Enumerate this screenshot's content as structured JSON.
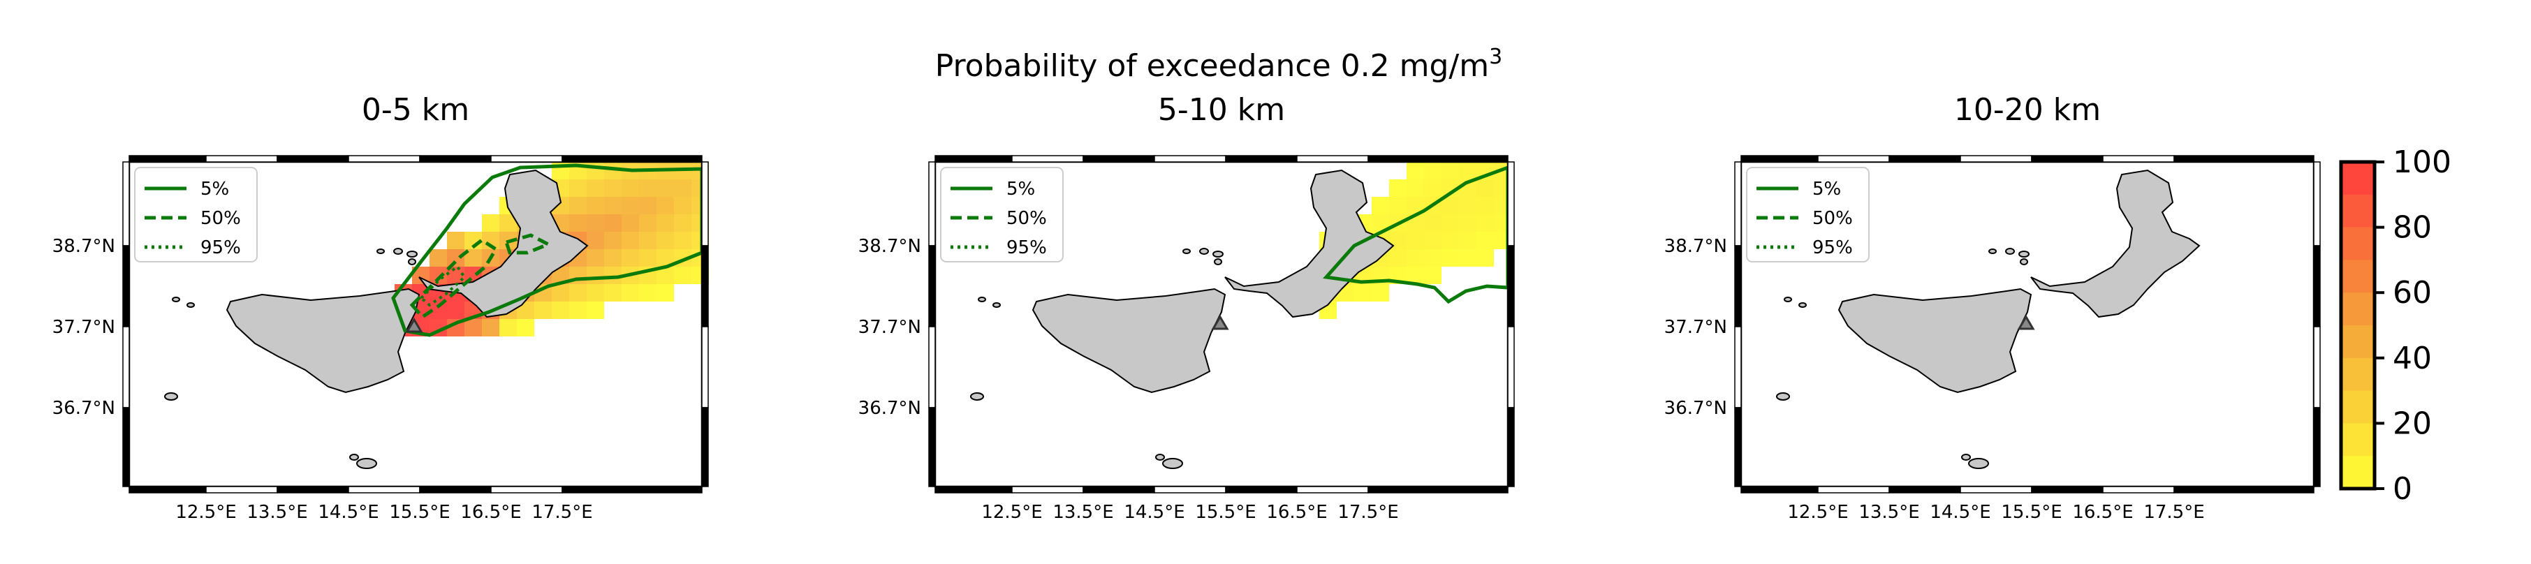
{
  "figure": {
    "suptitle_line1": "Probability of exceedance 0.2 mg/m",
    "suptitle_superscript": "3"
  },
  "axes": {
    "lat_ticks": [
      "38.7°N",
      "37.7°N",
      "36.7°N"
    ],
    "lon_ticks": [
      "12.5°E",
      "13.5°E",
      "14.5°E",
      "15.5°E",
      "16.5°E",
      "17.5°E"
    ]
  },
  "legend": {
    "entries": [
      {
        "label": "5%",
        "style": "solid"
      },
      {
        "label": "50%",
        "style": "dashed"
      },
      {
        "label": "95%",
        "style": "dotted"
      }
    ],
    "contour_color": "#0a7a0a"
  },
  "panels": [
    {
      "title": "0-5 km",
      "id": "p1"
    },
    {
      "title": "5-10 km",
      "id": "p2"
    },
    {
      "title": "10-20 km",
      "id": "p3"
    }
  ],
  "colorbar": {
    "ticks": [
      "100",
      "80",
      "60",
      "40",
      "20",
      "0"
    ],
    "color_low": "#ffff33",
    "color_mid": "#f5a33a",
    "color_high": "#ff3c3c"
  },
  "colors": {
    "land": "#c8c8c8",
    "coast": "#000000",
    "volcano_marker": "#555555"
  }
}
